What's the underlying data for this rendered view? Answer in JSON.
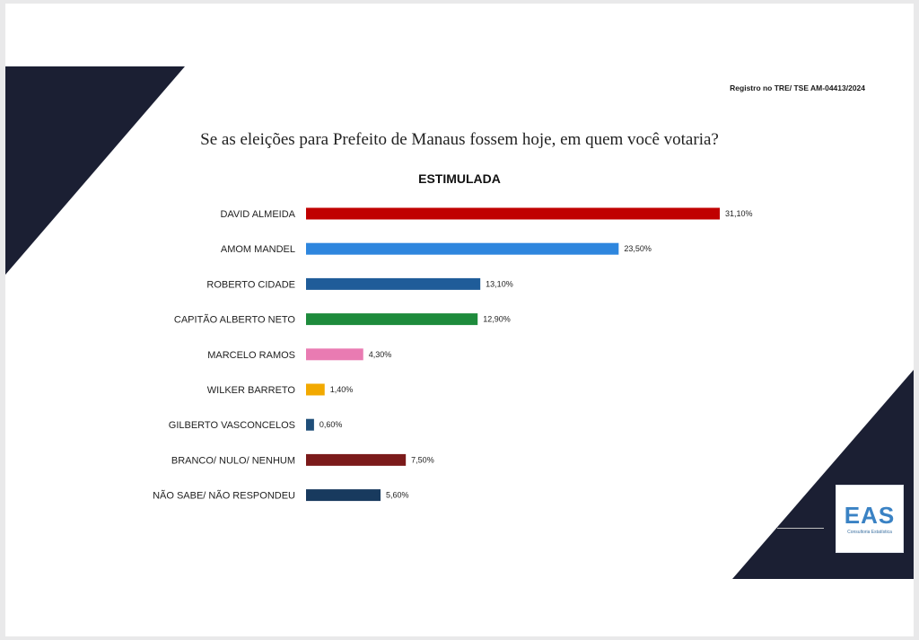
{
  "header": {
    "registro": "Registro no TRE/ TSE AM-04413/2024"
  },
  "chart_data": {
    "type": "bar",
    "orientation": "horizontal",
    "title": "Se as eleições para Prefeito de Manaus fossem hoje, em quem você votaria?",
    "subtitle": "ESTIMULADA",
    "categories": [
      "DAVID ALMEIDA",
      "AMOM MANDEL",
      "ROBERTO CIDADE",
      "CAPITÃO ALBERTO NETO",
      "MARCELO RAMOS",
      "WILKER BARRETO",
      "GILBERTO VASCONCELOS",
      "BRANCO/ NULO/ NENHUM",
      "NÃO SABE/ NÃO RESPONDEU"
    ],
    "values": [
      31.1,
      23.5,
      13.1,
      12.9,
      4.3,
      1.4,
      0.6,
      7.5,
      5.6
    ],
    "labels": [
      "31,10%",
      "23,50%",
      "13,10%",
      "12,90%",
      "4,30%",
      "1,40%",
      "0,60%",
      "7,50%",
      "5,60%"
    ],
    "colors": [
      "#c00000",
      "#2e86de",
      "#1f5c99",
      "#1e8b3c",
      "#e97bb2",
      "#f2a900",
      "#1f4e79",
      "#7b1a1a",
      "#183a5e"
    ],
    "xlim": [
      0,
      31.1
    ],
    "grid": false,
    "legend": "none"
  },
  "logo": {
    "mark": "EAS",
    "tagline": "Consultoria Estatística"
  },
  "theme": {
    "dark_navy": "#1b1f33",
    "accent_blue": "#3a82c4"
  }
}
